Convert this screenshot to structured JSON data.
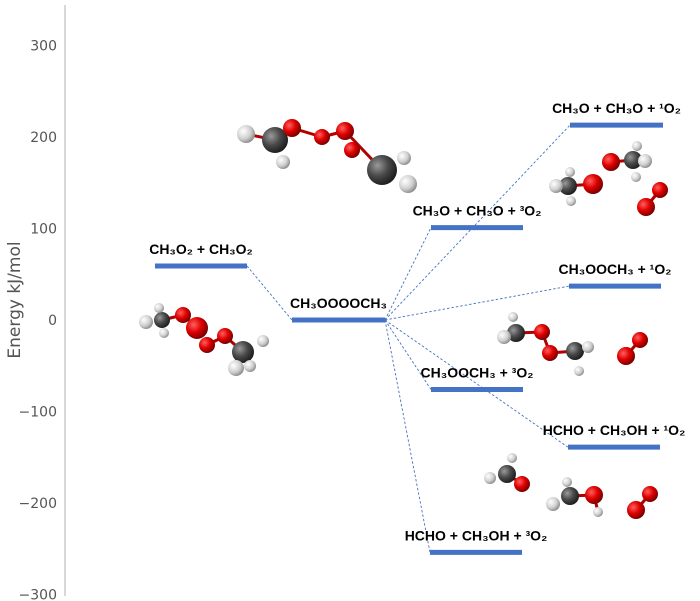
{
  "axis": {
    "label": "Energy kJ/mol",
    "ticks": [
      "300",
      "200",
      "100",
      "0",
      "−100",
      "−200",
      "−300"
    ],
    "tick_values": [
      300,
      200,
      100,
      0,
      -100,
      -200,
      -300
    ],
    "range": [
      -300,
      300
    ]
  },
  "levels": [
    {
      "label": "CH₃O₂ + CH₃O₂",
      "energy": 59
    },
    {
      "label": "CH₃OOOOCH₃",
      "energy": 0
    },
    {
      "label": "CH₃O + CH₃O + ³O₂",
      "energy": 101
    },
    {
      "label": "CH₃O + CH₃O + ¹O₂",
      "energy": 213
    },
    {
      "label": "CH₃OOCH₃ + ¹O₂",
      "energy": 37
    },
    {
      "label": "CH₃OOCH₃ + ³O₂",
      "energy": -76
    },
    {
      "label": "HCHO + CH₃OH + ¹O₂",
      "energy": -139
    },
    {
      "label": "HCHO + CH₃OH + ³O₂",
      "energy": -254
    }
  ],
  "connections": [
    [
      0,
      1
    ],
    [
      1,
      2
    ],
    [
      1,
      3
    ],
    [
      1,
      4
    ],
    [
      1,
      5
    ],
    [
      1,
      6
    ],
    [
      1,
      7
    ]
  ],
  "colors": {
    "level": "#4472c4",
    "oxygen": "#e00000",
    "carbon": "#555555",
    "hydrogen": "#d8d8d8",
    "axis": "#cccccc"
  }
}
